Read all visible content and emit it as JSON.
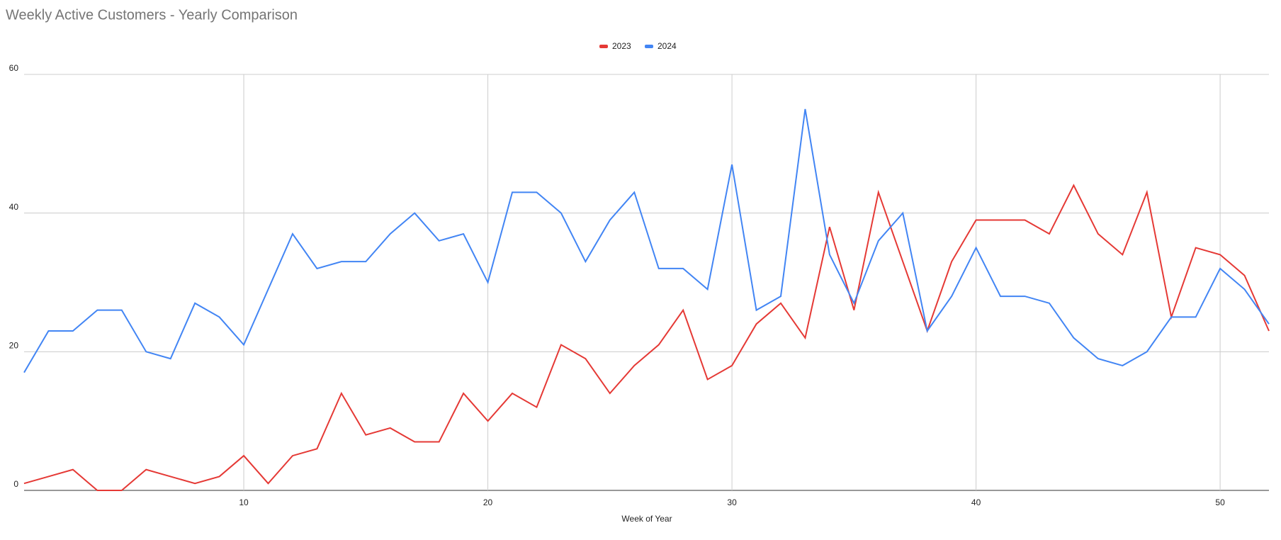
{
  "chart_data": {
    "type": "line",
    "title": "Weekly Active Customers - Yearly Comparison",
    "x_label": "Week of Year",
    "x": [
      1,
      2,
      3,
      4,
      5,
      6,
      7,
      8,
      9,
      10,
      11,
      12,
      13,
      14,
      15,
      16,
      17,
      18,
      19,
      20,
      21,
      22,
      23,
      24,
      25,
      26,
      27,
      28,
      29,
      30,
      31,
      32,
      33,
      34,
      35,
      36,
      37,
      38,
      39,
      40,
      41,
      42,
      43,
      44,
      45,
      46,
      47,
      48,
      49,
      50,
      51,
      52
    ],
    "series": [
      {
        "name": "2023",
        "color": "#e53935",
        "values": [
          1,
          2,
          3,
          0,
          0,
          3,
          2,
          1,
          2,
          5,
          1,
          5,
          6,
          14,
          8,
          9,
          7,
          7,
          14,
          10,
          14,
          12,
          21,
          19,
          14,
          18,
          21,
          26,
          16,
          18,
          24,
          27,
          22,
          38,
          26,
          43,
          33,
          23,
          33,
          39,
          39,
          39,
          37,
          44,
          37,
          34,
          43,
          25,
          35,
          34,
          31,
          23
        ]
      },
      {
        "name": "2024",
        "color": "#4285f4",
        "values": [
          17,
          23,
          23,
          26,
          26,
          20,
          19,
          27,
          25,
          21,
          29,
          37,
          32,
          33,
          33,
          37,
          40,
          36,
          37,
          30,
          43,
          43,
          40,
          33,
          39,
          43,
          32,
          32,
          29,
          47,
          26,
          28,
          55,
          34,
          27,
          36,
          40,
          23,
          28,
          35,
          28,
          28,
          27,
          22,
          19,
          18,
          20,
          25,
          25,
          32,
          29,
          24
        ]
      }
    ],
    "xlim": [
      1,
      52
    ],
    "xticks": [
      10,
      20,
      30,
      40,
      50
    ],
    "ylim": [
      0,
      60
    ],
    "yticks": [
      0,
      20,
      40,
      60
    ],
    "grid": true,
    "legend": "top"
  }
}
